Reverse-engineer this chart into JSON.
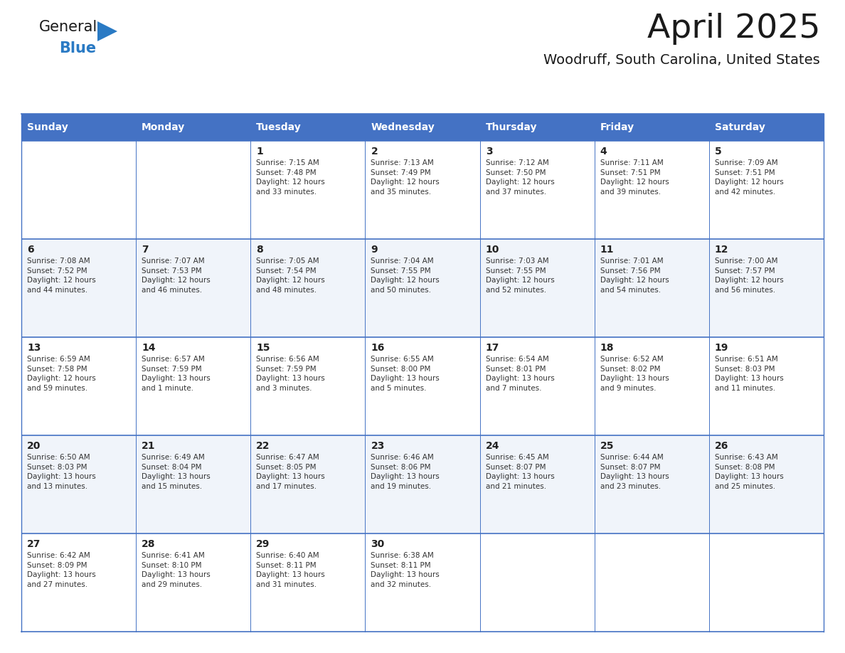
{
  "title": "April 2025",
  "subtitle": "Woodruff, South Carolina, United States",
  "header_bg_color": "#4472C4",
  "header_text_color": "#FFFFFF",
  "cell_bg_even": "#FFFFFF",
  "cell_bg_odd": "#F0F4FA",
  "border_color": "#4472C4",
  "day_headers": [
    "Sunday",
    "Monday",
    "Tuesday",
    "Wednesday",
    "Thursday",
    "Friday",
    "Saturday"
  ],
  "title_color": "#1a1a1a",
  "subtitle_color": "#1a1a1a",
  "day_num_color": "#222222",
  "cell_text_color": "#333333",
  "logo_general_color": "#1a1a1a",
  "logo_blue_color": "#2a7ac4",
  "logo_triangle_color": "#2a7ac4",
  "weeks": [
    [
      {
        "day": "",
        "text": ""
      },
      {
        "day": "",
        "text": ""
      },
      {
        "day": "1",
        "text": "Sunrise: 7:15 AM\nSunset: 7:48 PM\nDaylight: 12 hours\nand 33 minutes."
      },
      {
        "day": "2",
        "text": "Sunrise: 7:13 AM\nSunset: 7:49 PM\nDaylight: 12 hours\nand 35 minutes."
      },
      {
        "day": "3",
        "text": "Sunrise: 7:12 AM\nSunset: 7:50 PM\nDaylight: 12 hours\nand 37 minutes."
      },
      {
        "day": "4",
        "text": "Sunrise: 7:11 AM\nSunset: 7:51 PM\nDaylight: 12 hours\nand 39 minutes."
      },
      {
        "day": "5",
        "text": "Sunrise: 7:09 AM\nSunset: 7:51 PM\nDaylight: 12 hours\nand 42 minutes."
      }
    ],
    [
      {
        "day": "6",
        "text": "Sunrise: 7:08 AM\nSunset: 7:52 PM\nDaylight: 12 hours\nand 44 minutes."
      },
      {
        "day": "7",
        "text": "Sunrise: 7:07 AM\nSunset: 7:53 PM\nDaylight: 12 hours\nand 46 minutes."
      },
      {
        "day": "8",
        "text": "Sunrise: 7:05 AM\nSunset: 7:54 PM\nDaylight: 12 hours\nand 48 minutes."
      },
      {
        "day": "9",
        "text": "Sunrise: 7:04 AM\nSunset: 7:55 PM\nDaylight: 12 hours\nand 50 minutes."
      },
      {
        "day": "10",
        "text": "Sunrise: 7:03 AM\nSunset: 7:55 PM\nDaylight: 12 hours\nand 52 minutes."
      },
      {
        "day": "11",
        "text": "Sunrise: 7:01 AM\nSunset: 7:56 PM\nDaylight: 12 hours\nand 54 minutes."
      },
      {
        "day": "12",
        "text": "Sunrise: 7:00 AM\nSunset: 7:57 PM\nDaylight: 12 hours\nand 56 minutes."
      }
    ],
    [
      {
        "day": "13",
        "text": "Sunrise: 6:59 AM\nSunset: 7:58 PM\nDaylight: 12 hours\nand 59 minutes."
      },
      {
        "day": "14",
        "text": "Sunrise: 6:57 AM\nSunset: 7:59 PM\nDaylight: 13 hours\nand 1 minute."
      },
      {
        "day": "15",
        "text": "Sunrise: 6:56 AM\nSunset: 7:59 PM\nDaylight: 13 hours\nand 3 minutes."
      },
      {
        "day": "16",
        "text": "Sunrise: 6:55 AM\nSunset: 8:00 PM\nDaylight: 13 hours\nand 5 minutes."
      },
      {
        "day": "17",
        "text": "Sunrise: 6:54 AM\nSunset: 8:01 PM\nDaylight: 13 hours\nand 7 minutes."
      },
      {
        "day": "18",
        "text": "Sunrise: 6:52 AM\nSunset: 8:02 PM\nDaylight: 13 hours\nand 9 minutes."
      },
      {
        "day": "19",
        "text": "Sunrise: 6:51 AM\nSunset: 8:03 PM\nDaylight: 13 hours\nand 11 minutes."
      }
    ],
    [
      {
        "day": "20",
        "text": "Sunrise: 6:50 AM\nSunset: 8:03 PM\nDaylight: 13 hours\nand 13 minutes."
      },
      {
        "day": "21",
        "text": "Sunrise: 6:49 AM\nSunset: 8:04 PM\nDaylight: 13 hours\nand 15 minutes."
      },
      {
        "day": "22",
        "text": "Sunrise: 6:47 AM\nSunset: 8:05 PM\nDaylight: 13 hours\nand 17 minutes."
      },
      {
        "day": "23",
        "text": "Sunrise: 6:46 AM\nSunset: 8:06 PM\nDaylight: 13 hours\nand 19 minutes."
      },
      {
        "day": "24",
        "text": "Sunrise: 6:45 AM\nSunset: 8:07 PM\nDaylight: 13 hours\nand 21 minutes."
      },
      {
        "day": "25",
        "text": "Sunrise: 6:44 AM\nSunset: 8:07 PM\nDaylight: 13 hours\nand 23 minutes."
      },
      {
        "day": "26",
        "text": "Sunrise: 6:43 AM\nSunset: 8:08 PM\nDaylight: 13 hours\nand 25 minutes."
      }
    ],
    [
      {
        "day": "27",
        "text": "Sunrise: 6:42 AM\nSunset: 8:09 PM\nDaylight: 13 hours\nand 27 minutes."
      },
      {
        "day": "28",
        "text": "Sunrise: 6:41 AM\nSunset: 8:10 PM\nDaylight: 13 hours\nand 29 minutes."
      },
      {
        "day": "29",
        "text": "Sunrise: 6:40 AM\nSunset: 8:11 PM\nDaylight: 13 hours\nand 31 minutes."
      },
      {
        "day": "30",
        "text": "Sunrise: 6:38 AM\nSunset: 8:11 PM\nDaylight: 13 hours\nand 32 minutes."
      },
      {
        "day": "",
        "text": ""
      },
      {
        "day": "",
        "text": ""
      },
      {
        "day": "",
        "text": ""
      }
    ]
  ]
}
